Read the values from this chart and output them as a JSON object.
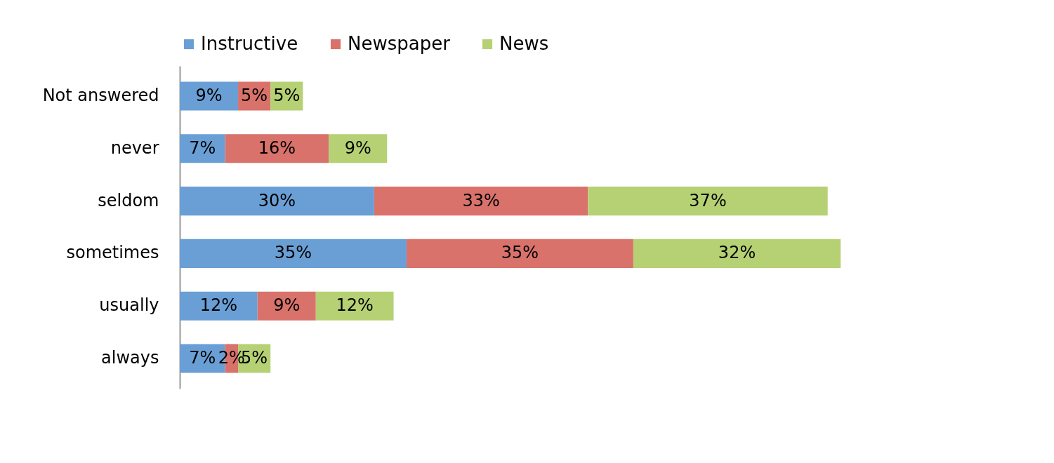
{
  "chart_data": {
    "type": "bar",
    "orientation": "horizontal",
    "stacked": true,
    "legend": "top",
    "categories": [
      "Not answered",
      "never",
      "seldom",
      "sometimes",
      "usually",
      "always"
    ],
    "series": [
      {
        "name": "Instructive",
        "color": "#6a9fd6",
        "values": [
          9,
          7,
          30,
          35,
          12,
          7
        ],
        "value_labels": [
          "9%",
          "7%",
          "30%",
          "35%",
          "12%",
          "7%"
        ]
      },
      {
        "name": "Newspaper",
        "color": "#d9726b",
        "values": [
          5,
          16,
          33,
          35,
          9,
          2
        ],
        "value_labels": [
          "5%",
          "16%",
          "33%",
          "35%",
          "9%",
          "2%"
        ]
      },
      {
        "name": "News",
        "color": "#b5d174",
        "values": [
          5,
          9,
          37,
          32,
          12,
          5
        ],
        "value_labels": [
          "5%",
          "9%",
          "37%",
          "32%",
          "12%",
          "5%"
        ]
      }
    ]
  }
}
